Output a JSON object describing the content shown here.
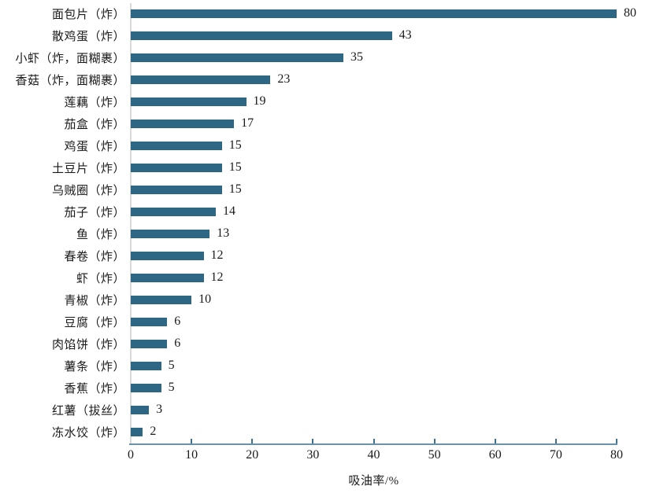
{
  "chart_data": {
    "type": "bar",
    "orientation": "horizontal",
    "title": "",
    "xlabel": "吸油率/%",
    "ylabel": "",
    "xlim": [
      0,
      80
    ],
    "xticks": [
      0,
      10,
      20,
      30,
      40,
      50,
      60,
      70,
      80
    ],
    "grid": false,
    "legend": false,
    "value_labels_shown": true,
    "bar_color": "#2d6784",
    "axis_line_color": "#6a91ad",
    "tick_mark_color": "#41708f",
    "baseline_color": "#d9d9d9",
    "text_color": "#1a1a1a",
    "categories": [
      "面包片（炸）",
      "散鸡蛋（炸）",
      "小虾（炸，面糊裹）",
      "香菇（炸，面糊裹）",
      "莲藕（炸）",
      "茄盒（炸）",
      "鸡蛋（炸）",
      "土豆片（炸）",
      "乌贼圈（炸）",
      "茄子（炸）",
      "鱼（炸）",
      "春卷（炸）",
      "虾（炸）",
      "青椒（炸）",
      "豆腐（炸）",
      "肉馅饼（炸）",
      "薯条（炸）",
      "香蕉（炸）",
      "红薯（拔丝）",
      "冻水饺（炸）"
    ],
    "values": [
      80,
      43,
      35,
      23,
      19,
      17,
      15,
      15,
      15,
      14,
      13,
      12,
      12,
      10,
      6,
      6,
      5,
      5,
      3,
      2
    ]
  }
}
